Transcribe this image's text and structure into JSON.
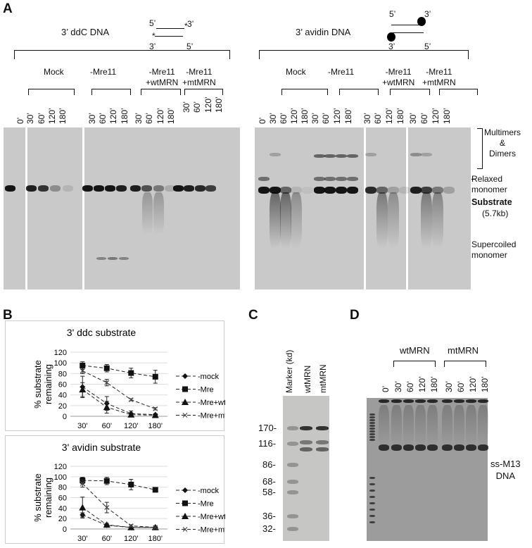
{
  "panels": {
    "a": "A",
    "b": "B",
    "c": "C",
    "d": "D"
  },
  "panel_a": {
    "left": {
      "title": "3’ ddC DNA",
      "diagram": {
        "top_5": "5’",
        "top_3": "3’",
        "bot_3": "3’",
        "bot_5": "5’",
        "mark": "*"
      },
      "groups": [
        "Mock",
        "-Mre11",
        "-Mre11\n+wtMRN",
        "-Mre11\n+mtMRN"
      ],
      "lanes": [
        "0’",
        "30’",
        "60’",
        "120’",
        "180’",
        "30’",
        "60’",
        "120’",
        "180’",
        "30’",
        "60’",
        "120’",
        "180’",
        "30’",
        "60’",
        "120’",
        "180’"
      ]
    },
    "right": {
      "title": "3’ avidin DNA",
      "diagram": {
        "top_5": "5’",
        "top_3": "3’",
        "bot_3": "3’",
        "bot_5": "5’"
      },
      "groups": [
        "Mock",
        "-Mre11",
        "-Mre11\n+wtMRN",
        "-Mre11\n+mtMRN"
      ],
      "lanes": [
        "0’",
        "30’",
        "60’",
        "120’",
        "180’",
        "30’",
        "60’",
        "120’",
        "180’",
        "30’",
        "60’",
        "120’",
        "180’",
        "30’",
        "60’",
        "120’",
        "180’"
      ]
    },
    "side_labels": {
      "multimers": "Multimers\n&\nDimers",
      "relaxed": "Relaxed\nmonomer",
      "substrate": "Substrate",
      "size": "(5.7kb)",
      "supercoiled": "Supercoiled\nmonomer"
    }
  },
  "chart_data": [
    {
      "type": "line",
      "title": "3' ddc substrate",
      "ylabel": "% substrate\nremaining",
      "categories": [
        "30'",
        "60'",
        "120'",
        "180'"
      ],
      "ylim": [
        0,
        120
      ],
      "yticks": [
        0,
        20,
        40,
        60,
        80,
        100,
        120
      ],
      "grid": true,
      "legend": "right",
      "series": [
        {
          "name": "-mock",
          "marker": "diamond",
          "values": [
            55,
            24,
            5,
            3
          ],
          "errors": [
            20,
            13,
            5,
            2
          ]
        },
        {
          "name": "-Mre",
          "marker": "square",
          "values": [
            95,
            90,
            81,
            74
          ],
          "errors": [
            7,
            7,
            9,
            12
          ]
        },
        {
          "name": "-Mre+wt",
          "marker": "triangle",
          "values": [
            50,
            17,
            3,
            2
          ],
          "errors": [
            13,
            11,
            3,
            2
          ]
        },
        {
          "name": "-Mre+mt",
          "marker": "x",
          "values": [
            85,
            63,
            31,
            14
          ],
          "errors": [
            5,
            6,
            2,
            2
          ]
        }
      ]
    },
    {
      "type": "line",
      "title": "3' avidin substrate",
      "ylabel": "% substrate\nremaining",
      "categories": [
        "30'",
        "60'",
        "120'",
        "180'"
      ],
      "ylim": [
        0,
        120
      ],
      "yticks": [
        0,
        20,
        40,
        60,
        80,
        100,
        120
      ],
      "grid": true,
      "legend": "right",
      "series": [
        {
          "name": "-mock",
          "marker": "diamond",
          "values": [
            27,
            7,
            3,
            3
          ],
          "errors": [
            4,
            2,
            1,
            1
          ]
        },
        {
          "name": "-Mre",
          "marker": "square",
          "values": [
            93,
            92,
            85,
            75
          ],
          "errors": [
            6,
            7,
            10,
            3
          ]
        },
        {
          "name": "-Mre+wt",
          "marker": "triangle",
          "values": [
            41,
            8,
            3,
            3
          ],
          "errors": [
            20,
            3,
            1,
            1
          ]
        },
        {
          "name": "-Mre+mt",
          "marker": "x",
          "values": [
            87,
            41,
            6,
            3
          ],
          "errors": [
            7,
            10,
            2,
            1
          ]
        }
      ]
    }
  ],
  "panel_c": {
    "lanes": [
      "Marker  (kd)",
      "wtMRN",
      "mtMRN"
    ],
    "markers": [
      "170-",
      "116-",
      "86-",
      "68-",
      "58-",
      "36-",
      "32-"
    ]
  },
  "panel_d": {
    "groups": [
      "wtMRN",
      "mtMRN"
    ],
    "lanes": [
      "0’",
      "30’",
      "60’",
      "120’",
      "180’",
      "30’",
      "60’",
      "120’",
      "180’"
    ],
    "band_label": "ss-M13\nDNA"
  }
}
